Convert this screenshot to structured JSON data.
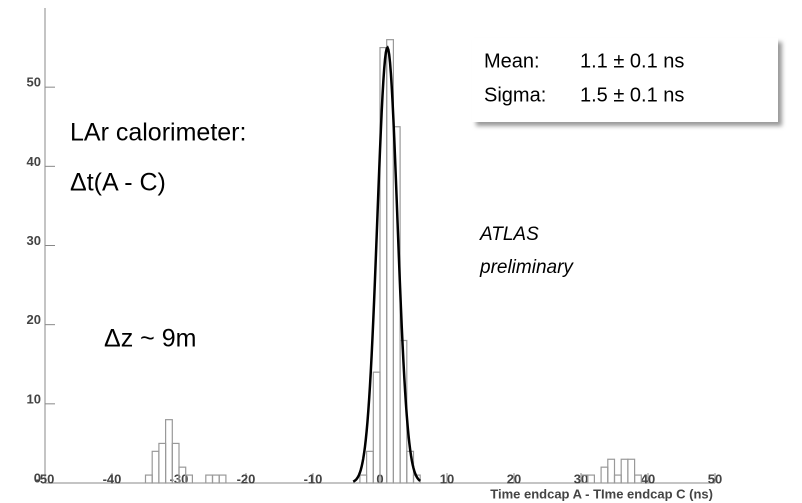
{
  "chart_data": {
    "type": "histogram",
    "xlabel": "Time endcap A - TIme endcap C (ns)",
    "bins": [
      -50,
      -49,
      -48,
      -47,
      -46,
      -45,
      -44,
      -43,
      -42,
      -41,
      -40,
      -39,
      -38,
      -37,
      -36,
      -35,
      -34,
      -33,
      -32,
      -31,
      -30,
      -29,
      -28,
      -27,
      -26,
      -25,
      -24,
      -23,
      -22,
      -21,
      -20,
      -19,
      -18,
      -17,
      -16,
      -15,
      -14,
      -13,
      -12,
      -11,
      -10,
      -9,
      -8,
      -7,
      -6,
      -5,
      -4,
      -3,
      -2,
      -1,
      0,
      1,
      2,
      3,
      4,
      5,
      6,
      7,
      8,
      9,
      10,
      11,
      12,
      13,
      14,
      15,
      16,
      17,
      18,
      19,
      20,
      21,
      22,
      23,
      24,
      25,
      26,
      27,
      28,
      29,
      30,
      31,
      32,
      33,
      34,
      35,
      36,
      37,
      38,
      39,
      40,
      41,
      42,
      43,
      44,
      45,
      46,
      47,
      48,
      49,
      50
    ],
    "values": [
      0,
      0,
      0,
      0,
      0,
      0,
      0,
      0,
      0,
      0,
      0,
      0,
      0,
      0,
      0,
      1,
      4,
      5,
      8,
      5,
      2,
      1,
      0,
      0,
      1,
      1,
      1,
      0,
      0,
      0,
      0,
      0,
      0,
      0,
      0,
      0,
      0,
      0,
      0,
      0,
      0,
      0,
      0,
      0,
      0,
      0,
      0,
      1,
      4,
      14,
      55,
      56,
      45,
      18,
      4,
      1,
      0,
      0,
      0,
      0,
      0,
      0,
      0,
      0,
      0,
      0,
      0,
      0,
      0,
      0,
      0,
      0,
      0,
      0,
      0,
      0,
      0,
      0,
      0,
      0,
      1,
      1,
      0,
      2,
      3,
      1,
      3,
      3,
      1,
      0,
      0,
      0,
      0,
      0,
      0,
      0,
      0,
      0,
      0,
      0
    ],
    "color": "#999999",
    "fit": {
      "amplitude": 55,
      "mean": 1.1,
      "sigma": 1.5,
      "range": [
        -4,
        6
      ],
      "color": "#000000"
    },
    "xlim": [
      -50,
      50
    ],
    "ylim": [
      0,
      60
    ],
    "xticks": [
      -50,
      -40,
      -30,
      -20,
      -10,
      0,
      10,
      20,
      30,
      40,
      50
    ],
    "yticks": [
      0,
      10,
      20,
      30,
      40,
      50
    ],
    "stats": {
      "mean_label": "Mean:",
      "mean_value": "1.1 ± 0.1 ns",
      "sigma_label": "Sigma:",
      "sigma_value": "1.5 ± 0.1 ns"
    },
    "annotations": {
      "detector": "LAr calorimeter:",
      "quantity": "Δt(A - C)",
      "distance": "Δz ~ 9m",
      "experiment": "ATLAS",
      "status": "preliminary"
    }
  }
}
